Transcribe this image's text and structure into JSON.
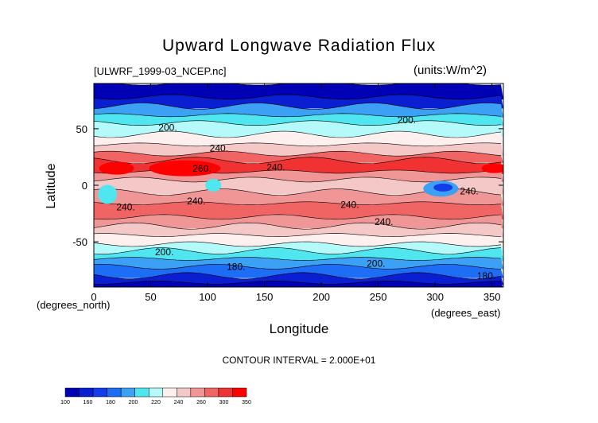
{
  "chart_data": {
    "type": "heatmap",
    "title": "Upward Longwave Radiation Flux",
    "file_label": "[ULWRF_1999-03_NCEP.nc]",
    "units_label": "(units:W/m^2)",
    "xlabel": "Longitude",
    "ylabel": "Latitude",
    "x_units": "(degrees_east)",
    "y_units": "(degrees_north)",
    "xlim": [
      0,
      360
    ],
    "ylim": [
      -90,
      90
    ],
    "x_ticks": [
      "0",
      "50",
      "100",
      "150",
      "200",
      "250",
      "300",
      "350"
    ],
    "y_ticks": [
      "50",
      "0",
      "-50"
    ],
    "contour_interval": "CONTOUR INTERVAL = 2.000E+01",
    "colorbar": {
      "levels": [
        "100",
        "160",
        "180",
        "200",
        "220",
        "240",
        "260",
        "300",
        "350"
      ],
      "colors": [
        "#0000b4",
        "#0a1ed2",
        "#143ceb",
        "#1e6ef5",
        "#3ca0f5",
        "#50e6f0",
        "#b4fafa",
        "#fff0f0",
        "#f5c8c8",
        "#f09696",
        "#f06464",
        "#f03232",
        "#ff0000"
      ]
    },
    "contour_labels": [
      {
        "text": "200.",
        "lon": 65,
        "lat": 48
      },
      {
        "text": "240.",
        "lon": 110,
        "lat": 30
      },
      {
        "text": "260.",
        "lon": 95,
        "lat": 12
      },
      {
        "text": "240.",
        "lon": 160,
        "lat": 13
      },
      {
        "text": "240.",
        "lon": 90,
        "lat": -17
      },
      {
        "text": "240.",
        "lon": 28,
        "lat": -22
      },
      {
        "text": "240.",
        "lon": 225,
        "lat": -20
      },
      {
        "text": "240.",
        "lon": 255,
        "lat": -35
      },
      {
        "text": "240.",
        "lon": 330,
        "lat": -8
      },
      {
        "text": "200.",
        "lon": 275,
        "lat": 55
      },
      {
        "text": "200.",
        "lon": 62,
        "lat": -62
      },
      {
        "text": "200.",
        "lon": 248,
        "lat": -72
      },
      {
        "text": "180.",
        "lon": 125,
        "lat": -75
      },
      {
        "text": "180.",
        "lon": 345,
        "lat": -83
      }
    ]
  }
}
